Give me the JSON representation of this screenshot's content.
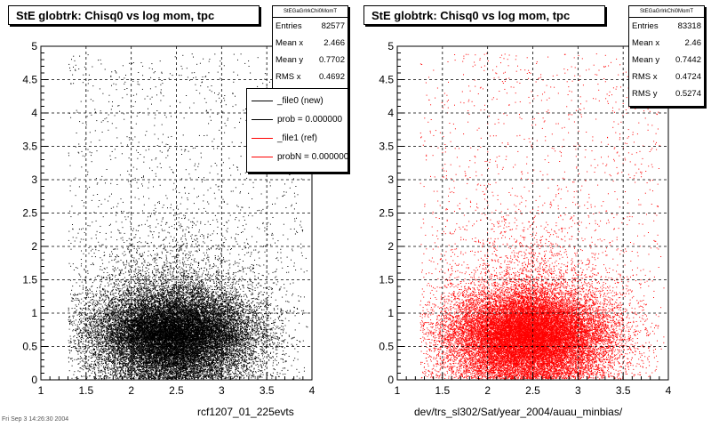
{
  "chart_data": [
    {
      "type": "scatter",
      "title": "StE globtrk: Chisq0 vs log mom, tpc",
      "xlabel": "rcf1207_01_225evts",
      "ylabel": "",
      "xlim": [
        1,
        4
      ],
      "ylim": [
        0,
        5
      ],
      "xticks": [
        "1",
        "1.5",
        "2",
        "2.5",
        "3",
        "3.5",
        "4"
      ],
      "yticks": [
        "0",
        "0.5",
        "1",
        "1.5",
        "2",
        "2.5",
        "3",
        "3.5",
        "4",
        "4.5",
        "5"
      ],
      "grid": true,
      "marker_color": "#000000",
      "stats": {
        "name": "StEGaGrlrkChi0MomT",
        "rows": [
          {
            "label": "Entries",
            "value": "82577"
          },
          {
            "label": "Mean x",
            "value": "2.466"
          },
          {
            "label": "Mean y",
            "value": "0.7702"
          },
          {
            "label": "RMS x",
            "value": "0.4692"
          }
        ]
      },
      "legend": {
        "placement": "top-right",
        "entries": [
          {
            "label": "_file0 (new)",
            "color": "#000000"
          },
          {
            "label": "prob = 0.000000",
            "color": "#000000"
          },
          {
            "label": "_file1 (ref)",
            "color": "#ff0000"
          },
          {
            "label": "probN = 0.000000",
            "color": "#ff0000"
          }
        ]
      },
      "distribution": {
        "entries": 82577,
        "mean_x": 2.466,
        "mean_y": 0.7702,
        "rms_x": 0.4692,
        "x_threshold": 1.3
      }
    },
    {
      "type": "scatter",
      "title": "StE globtrk: Chisq0 vs log mom, tpc",
      "xlabel": "dev/trs_sl302/Sat/year_2004/auau_minbias/",
      "ylabel": "",
      "xlim": [
        1,
        4
      ],
      "ylim": [
        0,
        5
      ],
      "xticks": [
        "1",
        "1.5",
        "2",
        "2.5",
        "3",
        "3.5",
        "4"
      ],
      "yticks": [
        "0",
        "0.5",
        "1",
        "1.5",
        "2",
        "2.5",
        "3",
        "3.5",
        "4",
        "4.5",
        "5"
      ],
      "grid": true,
      "marker_color": "#ff0000",
      "stats": {
        "name": "StEGaGrlrkChi0MomT",
        "rows": [
          {
            "label": "Entries",
            "value": "83318"
          },
          {
            "label": "Mean x",
            "value": "2.46"
          },
          {
            "label": "Mean y",
            "value": "0.7442"
          },
          {
            "label": "RMS x",
            "value": "0.4724"
          },
          {
            "label": "RMS y",
            "value": "0.5274"
          }
        ]
      },
      "distribution": {
        "entries": 83318,
        "mean_x": 2.46,
        "mean_y": 0.7442,
        "rms_x": 0.4724,
        "rms_y": 0.5274,
        "x_threshold": 1.25
      }
    }
  ],
  "footer": "Fri Sep 3 14:26:30 2004"
}
